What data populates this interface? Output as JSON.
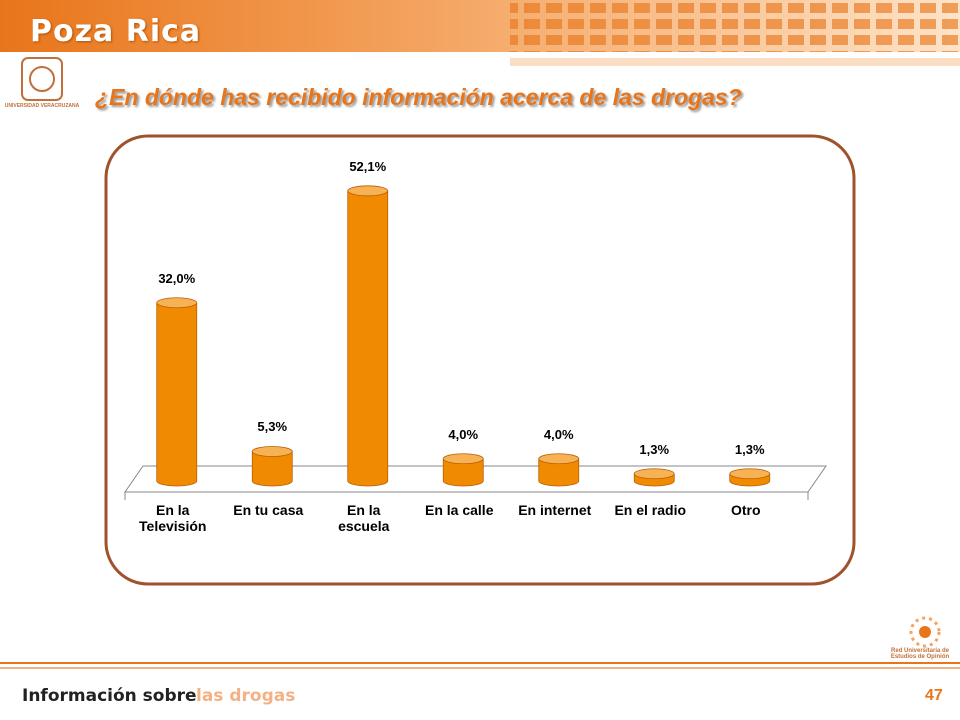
{
  "header": {
    "brand": "Poza Rica",
    "logo_text": "UNIVERSIDAD VERACRUZANA"
  },
  "footer": {
    "topic": "Información sobre",
    "subtopic": "las drogas",
    "page": "47",
    "network": "Red Universitaria de Estudios de Opinión"
  },
  "chart_data": {
    "type": "bar3d",
    "title": "¿En dónde has recibido información acerca de las drogas?",
    "categories": [
      "En la Televisión",
      "En tu casa",
      "En la escuela",
      "En la calle",
      "En internet",
      "En el radio",
      "Otro"
    ],
    "values": [
      32.0,
      5.3,
      52.1,
      4.0,
      4.0,
      1.3,
      1.3
    ],
    "value_labels": [
      "32,0%",
      "5,3%",
      "52,1%",
      "4,0%",
      "4,0%",
      "1,3%",
      "1,3%"
    ],
    "color": "#f08a00"
  }
}
